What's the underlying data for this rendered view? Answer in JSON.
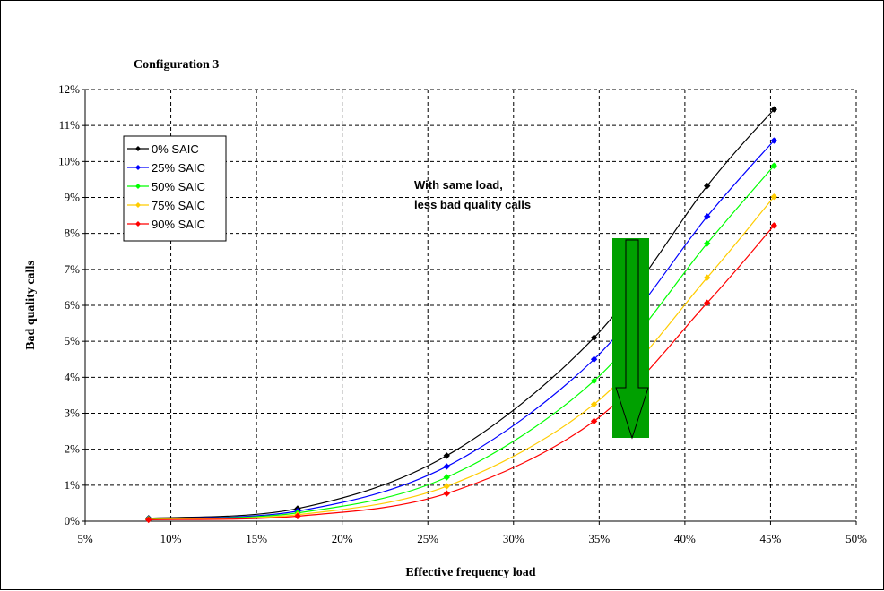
{
  "chart_data": {
    "type": "line",
    "title": "Configuration 3",
    "xlabel": "Effective frequency load",
    "ylabel": "Bad quality calls",
    "xlim": [
      5,
      50
    ],
    "ylim": [
      0,
      12
    ],
    "x_ticks": [
      "5%",
      "10%",
      "15%",
      "20%",
      "25%",
      "30%",
      "35%",
      "40%",
      "45%",
      "50%"
    ],
    "y_ticks": [
      "0%",
      "1%",
      "2%",
      "3%",
      "4%",
      "5%",
      "6%",
      "7%",
      "8%",
      "9%",
      "10%",
      "11%",
      "12%"
    ],
    "grid": true,
    "legend_position": "left",
    "x": [
      8.7,
      17.4,
      26.1,
      34.7,
      41.3,
      45.2
    ],
    "series": [
      {
        "name": "0% SAIC",
        "color": "#000000",
        "values": [
          0.08,
          0.35,
          1.82,
          5.1,
          9.32,
          11.45
        ]
      },
      {
        "name": "25% SAIC",
        "color": "#0000ff",
        "values": [
          0.07,
          0.28,
          1.52,
          4.5,
          8.47,
          10.58
        ]
      },
      {
        "name": "50% SAIC",
        "color": "#00ff00",
        "values": [
          0.06,
          0.23,
          1.22,
          3.9,
          7.72,
          9.88
        ]
      },
      {
        "name": "75% SAIC",
        "color": "#ffcc00",
        "values": [
          0.05,
          0.18,
          0.97,
          3.25,
          6.77,
          9.02
        ]
      },
      {
        "name": "90% SAIC",
        "color": "#ff0000",
        "values": [
          0.04,
          0.14,
          0.77,
          2.78,
          6.07,
          8.22
        ]
      }
    ],
    "annotations": [
      "With same load,",
      "less bad quality calls"
    ],
    "arrow": {
      "direction": "down",
      "color": "#00a000"
    }
  }
}
